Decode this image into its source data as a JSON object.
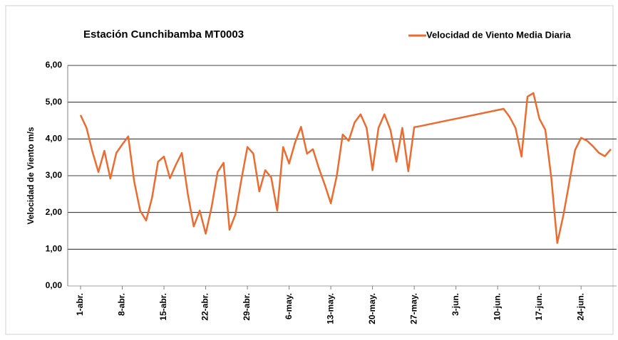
{
  "chart_data": {
    "type": "line",
    "title": "Estación Cunchibamba MT0003",
    "y_label": "Velocidad de Viento m/s",
    "x": [
      "1-abr.",
      "2-abr.",
      "3-abr.",
      "4-abr.",
      "5-abr.",
      "6-abr.",
      "7-abr.",
      "8-abr.",
      "9-abr.",
      "10-abr.",
      "11-abr.",
      "12-abr.",
      "13-abr.",
      "14-abr.",
      "15-abr.",
      "16-abr.",
      "17-abr.",
      "18-abr.",
      "19-abr.",
      "20-abr.",
      "21-abr.",
      "22-abr.",
      "23-abr.",
      "24-abr.",
      "25-abr.",
      "26-abr.",
      "27-abr.",
      "28-abr.",
      "29-abr.",
      "30-abr.",
      "1-may.",
      "2-may.",
      "3-may.",
      "4-may.",
      "5-may.",
      "6-may.",
      "7-may.",
      "8-may.",
      "9-may.",
      "10-may.",
      "11-may.",
      "12-may.",
      "13-may.",
      "14-may.",
      "15-may.",
      "16-may.",
      "17-may.",
      "18-may.",
      "19-may.",
      "20-may.",
      "21-may.",
      "22-may.",
      "23-may.",
      "24-may.",
      "25-may.",
      "26-may.",
      "27-may.",
      "28-may.",
      "11-jun.",
      "12-jun.",
      "13-jun.",
      "14-jun.",
      "15-jun.",
      "16-jun.",
      "17-jun.",
      "18-jun.",
      "19-jun.",
      "20-jun.",
      "21-jun.",
      "22-jun.",
      "23-jun.",
      "24-jun.",
      "25-jun.",
      "26-jun.",
      "27-jun.",
      "28-jun.",
      "29-jun."
    ],
    "series": [
      {
        "name": "Velocidad de Viento Media Diaria",
        "color": "#ed6b2f",
        "values": [
          4.65,
          4.3,
          3.65,
          3.1,
          3.68,
          2.92,
          3.62,
          3.85,
          4.07,
          2.85,
          2.05,
          1.78,
          2.4,
          3.38,
          3.52,
          2.93,
          3.3,
          3.62,
          2.5,
          1.62,
          2.05,
          1.42,
          2.15,
          3.1,
          3.35,
          1.53,
          1.95,
          2.9,
          3.78,
          3.6,
          2.57,
          3.15,
          2.95,
          2.05,
          3.78,
          3.33,
          3.9,
          4.33,
          3.6,
          3.72,
          3.2,
          2.75,
          2.25,
          3.0,
          4.12,
          3.95,
          4.45,
          4.67,
          4.3,
          3.15,
          4.3,
          4.67,
          4.25,
          3.38,
          4.3,
          3.12,
          4.32,
          4.35,
          4.82,
          4.6,
          4.3,
          3.52,
          5.15,
          5.25,
          4.55,
          4.25,
          2.95,
          1.17,
          1.9,
          2.8,
          3.7,
          4.03,
          3.95,
          3.8,
          3.62,
          3.53,
          3.72
        ]
      }
    ],
    "xlim": [
      "1-abr.",
      "29-jun."
    ],
    "xticks": [
      "1-abr.",
      "8-abr.",
      "15-abr.",
      "22-abr.",
      "29-abr.",
      "6-may.",
      "13-may.",
      "20-may.",
      "27-may.",
      "3-jun.",
      "10-jun.",
      "17-jun.",
      "24-jun."
    ],
    "ylim": [
      0,
      6
    ],
    "yticks": [
      {
        "value": 0,
        "label": "0,00"
      },
      {
        "value": 1,
        "label": "1,00"
      },
      {
        "value": 2,
        "label": "2,00"
      },
      {
        "value": 3,
        "label": "3,00"
      },
      {
        "value": 4,
        "label": "4,00"
      },
      {
        "value": 5,
        "label": "5,00"
      },
      {
        "value": 6,
        "label": "6,00"
      }
    ],
    "grid": true
  }
}
